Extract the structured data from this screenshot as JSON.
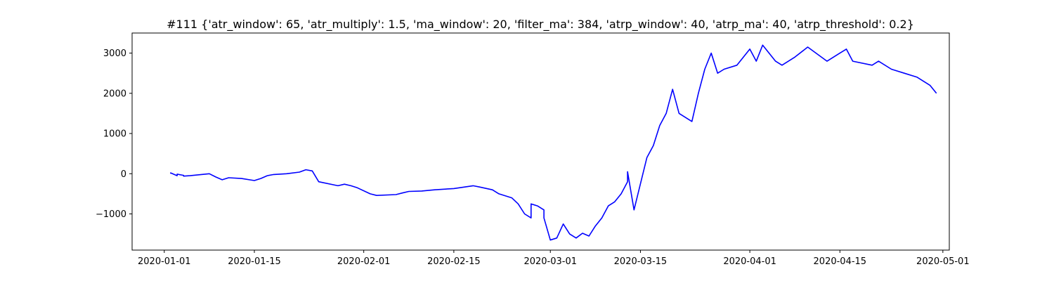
{
  "chart_data": {
    "type": "line",
    "title": "#111 {'atr_window': 65, 'atr_multiply': 1.5, 'ma_window': 20, 'filter_ma': 384, 'atrp_window': 40, 'atrp_ma': 40, 'atrp_threshold': 0.2}",
    "xlabel": "",
    "ylabel": "",
    "x_ticks": [
      "2020-01-01",
      "2020-01-15",
      "2020-02-01",
      "2020-02-15",
      "2020-03-01",
      "2020-03-15",
      "2020-04-01",
      "2020-04-15",
      "2020-05-01"
    ],
    "y_ticks": [
      -1000,
      0,
      1000,
      2000,
      3000
    ],
    "xlim": [
      "2019-12-27",
      "2020-05-02"
    ],
    "ylim": [
      -1900,
      3500
    ],
    "grid": false,
    "series": [
      {
        "color": "#0000ff",
        "points": [
          [
            "2020-01-02",
            0
          ],
          [
            "2020-01-02",
            20
          ],
          [
            "2020-01-03",
            -50
          ],
          [
            "2020-01-03",
            -10
          ],
          [
            "2020-01-04",
            -40
          ],
          [
            "2020-01-04",
            -60
          ],
          [
            "2020-01-05",
            -50
          ],
          [
            "2020-01-08",
            0
          ],
          [
            "2020-01-09",
            -80
          ],
          [
            "2020-01-10",
            -150
          ],
          [
            "2020-01-11",
            -100
          ],
          [
            "2020-01-13",
            -120
          ],
          [
            "2020-01-15",
            -170
          ],
          [
            "2020-01-16",
            -120
          ],
          [
            "2020-01-17",
            -50
          ],
          [
            "2020-01-18",
            -20
          ],
          [
            "2020-01-20",
            0
          ],
          [
            "2020-01-22",
            40
          ],
          [
            "2020-01-23",
            100
          ],
          [
            "2020-01-24",
            70
          ],
          [
            "2020-01-25",
            -200
          ],
          [
            "2020-01-28",
            -300
          ],
          [
            "2020-01-29",
            -260
          ],
          [
            "2020-01-30",
            -300
          ],
          [
            "2020-01-31",
            -350
          ],
          [
            "2020-02-02",
            -500
          ],
          [
            "2020-02-03",
            -540
          ],
          [
            "2020-02-06",
            -520
          ],
          [
            "2020-02-07",
            -480
          ],
          [
            "2020-02-08",
            -440
          ],
          [
            "2020-02-10",
            -430
          ],
          [
            "2020-02-12",
            -400
          ],
          [
            "2020-02-15",
            -370
          ],
          [
            "2020-02-18",
            -300
          ],
          [
            "2020-02-19",
            -330
          ],
          [
            "2020-02-21",
            -400
          ],
          [
            "2020-02-22",
            -500
          ],
          [
            "2020-02-24",
            -600
          ],
          [
            "2020-02-25",
            -750
          ],
          [
            "2020-02-26",
            -1000
          ],
          [
            "2020-02-27",
            -1100
          ],
          [
            "2020-02-27",
            -750
          ],
          [
            "2020-02-28",
            -800
          ],
          [
            "2020-02-29",
            -900
          ],
          [
            "2020-02-29",
            -1100
          ],
          [
            "2020-03-01",
            -1650
          ],
          [
            "2020-03-02",
            -1600
          ],
          [
            "2020-03-03",
            -1250
          ],
          [
            "2020-03-04",
            -1500
          ],
          [
            "2020-03-05",
            -1600
          ],
          [
            "2020-03-06",
            -1480
          ],
          [
            "2020-03-07",
            -1550
          ],
          [
            "2020-03-08",
            -1300
          ],
          [
            "2020-03-09",
            -1100
          ],
          [
            "2020-03-10",
            -800
          ],
          [
            "2020-03-11",
            -700
          ],
          [
            "2020-03-12",
            -500
          ],
          [
            "2020-03-13",
            -200
          ],
          [
            "2020-03-13",
            50
          ],
          [
            "2020-03-14",
            -900
          ],
          [
            "2020-03-16",
            400
          ],
          [
            "2020-03-17",
            700
          ],
          [
            "2020-03-18",
            1200
          ],
          [
            "2020-03-19",
            1500
          ],
          [
            "2020-03-20",
            2100
          ],
          [
            "2020-03-21",
            1500
          ],
          [
            "2020-03-23",
            1300
          ],
          [
            "2020-03-24",
            2000
          ],
          [
            "2020-03-25",
            2600
          ],
          [
            "2020-03-26",
            3000
          ],
          [
            "2020-03-27",
            2500
          ],
          [
            "2020-03-28",
            2600
          ],
          [
            "2020-03-30",
            2700
          ],
          [
            "2020-04-01",
            3100
          ],
          [
            "2020-04-02",
            2800
          ],
          [
            "2020-04-03",
            3200
          ],
          [
            "2020-04-05",
            2800
          ],
          [
            "2020-04-06",
            2700
          ],
          [
            "2020-04-08",
            2900
          ],
          [
            "2020-04-10",
            3150
          ],
          [
            "2020-04-13",
            2800
          ],
          [
            "2020-04-15",
            3000
          ],
          [
            "2020-04-16",
            3100
          ],
          [
            "2020-04-17",
            2800
          ],
          [
            "2020-04-20",
            2700
          ],
          [
            "2020-04-21",
            2800
          ],
          [
            "2020-04-23",
            2600
          ],
          [
            "2020-04-25",
            2500
          ],
          [
            "2020-04-27",
            2400
          ],
          [
            "2020-04-29",
            2200
          ],
          [
            "2020-04-30",
            2000
          ]
        ]
      }
    ]
  }
}
